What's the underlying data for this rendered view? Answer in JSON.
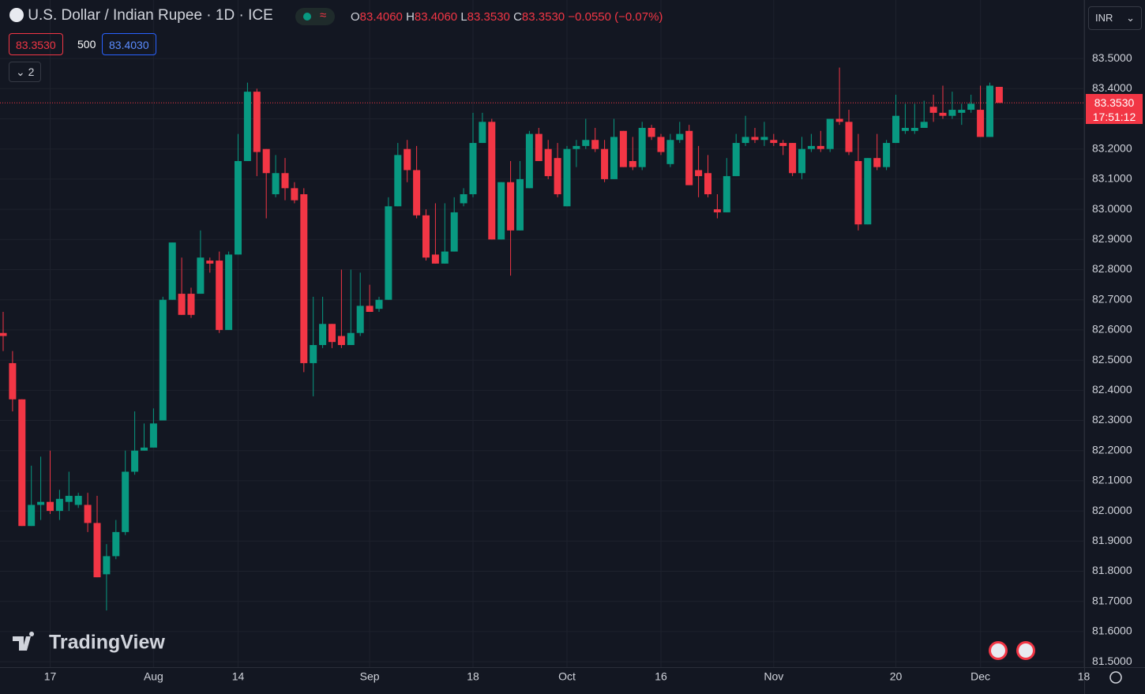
{
  "header": {
    "title": "U.S. Dollar / Indian Rupee · 1D · ICE",
    "ohlc": [
      {
        "k": "O",
        "v": "83.4060"
      },
      {
        "k": "H",
        "v": "83.4060"
      },
      {
        "k": "L",
        "v": "83.3530"
      },
      {
        "k": "C",
        "v": "83.3530"
      }
    ],
    "change": "−0.0550 (−0.07%)",
    "bid": "83.3530",
    "spread": "500",
    "ask": "83.4030",
    "indicators": "2",
    "currency": "INR",
    "logo": "TradingView"
  },
  "price_tag": {
    "price": "83.3530",
    "countdown": "17:51:12"
  },
  "chart_data": {
    "type": "candlestick",
    "up_color": "#089981",
    "down_color": "#f23645",
    "grid": true,
    "ylim": [
      81.482,
      83.694
    ],
    "yticks": [
      {
        "value": 81.5,
        "label": "81.5000"
      },
      {
        "value": 81.6,
        "label": "81.6000"
      },
      {
        "value": 81.7,
        "label": "81.7000"
      },
      {
        "value": 81.8,
        "label": "81.8000"
      },
      {
        "value": 81.9,
        "label": "81.9000"
      },
      {
        "value": 82.0,
        "label": "82.0000"
      },
      {
        "value": 82.1,
        "label": "82.1000"
      },
      {
        "value": 82.2,
        "label": "82.2000"
      },
      {
        "value": 82.3,
        "label": "82.3000"
      },
      {
        "value": 82.4,
        "label": "82.4000"
      },
      {
        "value": 82.5,
        "label": "82.5000"
      },
      {
        "value": 82.6,
        "label": "82.6000"
      },
      {
        "value": 82.7,
        "label": "82.7000"
      },
      {
        "value": 82.8,
        "label": "82.8000"
      },
      {
        "value": 82.9,
        "label": "82.9000"
      },
      {
        "value": 83.0,
        "label": "83.0000"
      },
      {
        "value": 83.1,
        "label": "83.1000"
      },
      {
        "value": 83.2,
        "label": "83.2000"
      },
      {
        "value": 83.3,
        "label": "83.3000"
      },
      {
        "value": 83.4,
        "label": "83.4000"
      },
      {
        "value": 83.5,
        "label": "83.5000"
      }
    ],
    "xticks": [
      {
        "value": 5,
        "label": "17"
      },
      {
        "value": 16,
        "label": "Aug"
      },
      {
        "value": 25,
        "label": "14"
      },
      {
        "value": 39,
        "label": "Sep"
      },
      {
        "value": 50,
        "label": "18"
      },
      {
        "value": 60,
        "label": "Oct"
      },
      {
        "value": 70,
        "label": "16"
      },
      {
        "value": 82,
        "label": "Nov"
      },
      {
        "value": 95,
        "label": "20"
      },
      {
        "value": 104,
        "label": "Dec"
      },
      {
        "value": 115,
        "label": "18"
      }
    ],
    "last_price": 83.353,
    "open": [
      82.59,
      82.49,
      82.37,
      81.95,
      82.02,
      82.03,
      82.0,
      82.03,
      82.02,
      82.02,
      81.96,
      81.79,
      81.85,
      81.93,
      82.13,
      82.2,
      82.21,
      82.3,
      82.7,
      82.72,
      82.72,
      82.72,
      82.83,
      82.83,
      82.6,
      82.85,
      83.16,
      83.39,
      83.2,
      83.05,
      83.12,
      83.07,
      83.05,
      82.49,
      82.55,
      82.62,
      82.58,
      82.55,
      82.59,
      82.68,
      82.67,
      82.7,
      83.01,
      83.2,
      83.13,
      82.98,
      82.85,
      82.82,
      82.86,
      83.02,
      83.05,
      83.22,
      83.29,
      82.9,
      83.09,
      82.93,
      83.07,
      83.25,
      83.2,
      83.17,
      83.01,
      83.2,
      83.21,
      83.23,
      83.2,
      83.1,
      83.26,
      83.16,
      83.14,
      83.27,
      83.24,
      83.15,
      83.23,
      83.26,
      83.13,
      83.12,
      83.0,
      82.99,
      83.11,
      83.22,
      83.24,
      83.23,
      83.23,
      83.22,
      83.22,
      83.12,
      83.2,
      83.21,
      83.2,
      83.3,
      83.29,
      83.16,
      82.95,
      83.17,
      83.14,
      83.22,
      83.26,
      83.26,
      83.27,
      83.34,
      83.32,
      83.31,
      83.32,
      83.33,
      83.33,
      83.24,
      83.406
    ],
    "high": [
      82.66,
      82.53,
      82.37,
      82.15,
      82.18,
      82.2,
      82.07,
      82.13,
      82.06,
      82.06,
      82.05,
      81.89,
      81.97,
      82.2,
      82.33,
      82.29,
      82.34,
      82.71,
      82.89,
      82.84,
      82.74,
      82.93,
      82.84,
      82.86,
      82.86,
      83.25,
      83.42,
      83.4,
      83.2,
      83.18,
      83.17,
      83.09,
      83.07,
      82.71,
      82.71,
      82.62,
      82.8,
      82.8,
      82.79,
      82.75,
      82.71,
      83.04,
      83.22,
      83.23,
      83.21,
      83.0,
      83.02,
      83.02,
      83.04,
      83.07,
      83.32,
      83.32,
      83.3,
      83.09,
      83.16,
      83.16,
      83.26,
      83.27,
      83.23,
      83.22,
      83.21,
      83.23,
      83.3,
      83.27,
      83.23,
      83.3,
      83.26,
      83.24,
      83.29,
      83.28,
      83.25,
      83.25,
      83.29,
      83.28,
      83.21,
      83.18,
      83.05,
      83.17,
      83.25,
      83.31,
      83.27,
      83.29,
      83.25,
      83.23,
      83.22,
      83.24,
      83.25,
      83.26,
      83.3,
      83.47,
      83.33,
      83.25,
      83.17,
      83.25,
      83.23,
      83.38,
      83.35,
      83.35,
      83.36,
      83.38,
      83.41,
      83.39,
      83.35,
      83.38,
      83.41,
      83.42,
      83.406
    ],
    "low": [
      82.53,
      82.33,
      81.95,
      81.95,
      81.97,
      81.99,
      81.97,
      82.0,
      82.01,
      81.93,
      81.78,
      81.67,
      81.84,
      81.92,
      82.12,
      82.2,
      82.21,
      82.3,
      82.7,
      82.65,
      82.64,
      82.72,
      82.79,
      82.59,
      82.6,
      82.85,
      83.16,
      83.11,
      82.97,
      83.04,
      83.03,
      83.02,
      82.46,
      82.38,
      82.54,
      82.54,
      82.54,
      82.55,
      82.58,
      82.66,
      82.66,
      82.7,
      83.01,
      83.09,
      82.97,
      82.83,
      82.82,
      82.82,
      82.86,
      83.01,
      83.04,
      83.22,
      82.9,
      82.9,
      82.78,
      82.93,
      83.07,
      83.16,
      83.1,
      83.04,
      83.01,
      83.14,
      83.2,
      83.19,
      83.09,
      83.1,
      83.14,
      83.13,
      83.13,
      83.23,
      83.18,
      83.14,
      83.22,
      83.08,
      83.04,
      83.04,
      82.97,
      82.99,
      83.11,
      83.21,
      83.22,
      83.21,
      83.21,
      83.18,
      83.11,
      83.1,
      83.19,
      83.19,
      83.19,
      83.28,
      83.18,
      82.93,
      82.95,
      83.13,
      83.13,
      83.22,
      83.25,
      83.25,
      83.27,
      83.29,
      83.3,
      83.3,
      83.28,
      83.32,
      83.24,
      83.24,
      83.353
    ],
    "close": [
      82.58,
      82.37,
      81.95,
      82.02,
      82.03,
      82.0,
      82.04,
      82.05,
      82.05,
      81.96,
      81.78,
      81.85,
      81.93,
      82.13,
      82.2,
      82.21,
      82.29,
      82.7,
      82.89,
      82.65,
      82.65,
      82.84,
      82.82,
      82.6,
      82.85,
      83.16,
      83.39,
      83.19,
      83.12,
      83.12,
      83.07,
      83.03,
      82.49,
      82.55,
      82.62,
      82.56,
      82.55,
      82.59,
      82.68,
      82.66,
      82.7,
      83.01,
      83.18,
      83.13,
      82.98,
      82.84,
      82.82,
      82.86,
      82.99,
      83.05,
      83.22,
      83.29,
      82.9,
      83.09,
      82.93,
      83.1,
      83.25,
      83.16,
      83.11,
      83.05,
      83.2,
      83.21,
      83.23,
      83.2,
      83.1,
      83.24,
      83.14,
      83.14,
      83.27,
      83.24,
      83.19,
      83.23,
      83.25,
      83.08,
      83.11,
      83.05,
      82.99,
      83.11,
      83.22,
      83.24,
      83.23,
      83.24,
      83.22,
      83.21,
      83.12,
      83.2,
      83.21,
      83.2,
      83.3,
      83.29,
      83.19,
      82.95,
      83.17,
      83.14,
      83.22,
      83.31,
      83.27,
      83.27,
      83.29,
      83.32,
      83.31,
      83.33,
      83.33,
      83.35,
      83.24,
      83.41,
      83.353
    ]
  }
}
